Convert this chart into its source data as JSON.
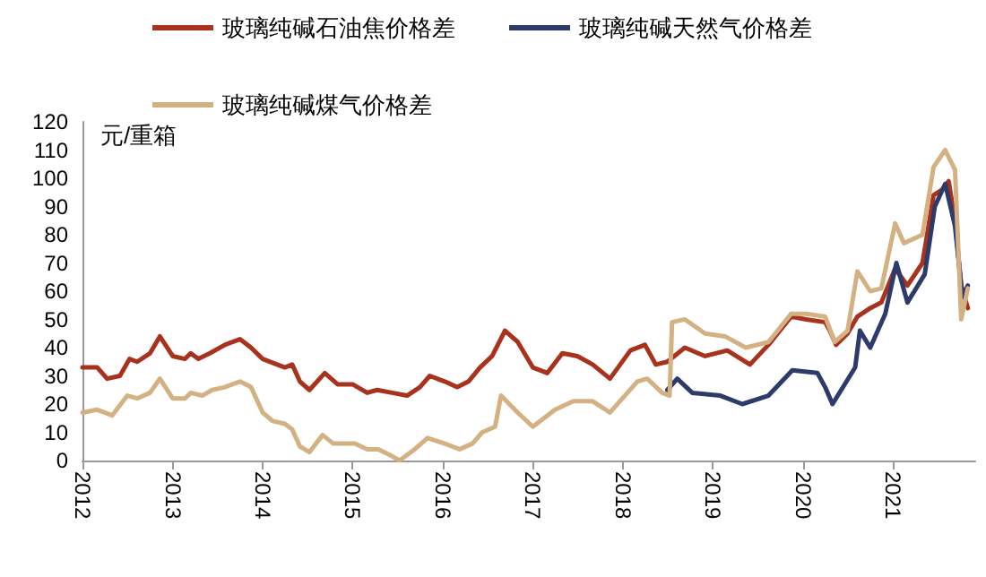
{
  "chart_data": {
    "type": "line",
    "ylabel": "元/重箱",
    "ylim": [
      0,
      120
    ],
    "yticks": [
      0,
      10,
      20,
      30,
      40,
      50,
      60,
      70,
      80,
      90,
      100,
      110,
      120
    ],
    "xlim": [
      "2012-01-01",
      "2021-12-01"
    ],
    "xticks": [
      "2012",
      "2013",
      "2014",
      "2015",
      "2016",
      "2017",
      "2018",
      "2019",
      "2020",
      "2021"
    ],
    "grid": false,
    "legend": "top",
    "marker": "none",
    "line_style": "solid",
    "series": [
      {
        "name": "玻璃纯碱石油焦价格差",
        "color": "#a8321c",
        "x": [
          "2012-01-01",
          "2012-03-01",
          "2012-04-10",
          "2012-06-01",
          "2012-07-10",
          "2012-08-10",
          "2012-10-01",
          "2012-11-10",
          "2013-01-01",
          "2013-02-20",
          "2013-03-15",
          "2013-04-15",
          "2013-06-01",
          "2013-08-01",
          "2013-10-01",
          "2013-11-15",
          "2014-01-01",
          "2014-03-01",
          "2014-04-01",
          "2014-05-01",
          "2014-06-01",
          "2014-07-10",
          "2014-09-10",
          "2014-11-01",
          "2015-01-01",
          "2015-03-01",
          "2015-04-10",
          "2015-06-10",
          "2015-08-10",
          "2015-10-01",
          "2015-11-10",
          "2016-01-10",
          "2016-03-01",
          "2016-04-15",
          "2016-06-01",
          "2016-07-20",
          "2016-09-10",
          "2016-11-01",
          "2017-01-01",
          "2017-03-01",
          "2017-05-01",
          "2017-07-01",
          "2017-09-01",
          "2017-11-10",
          "2018-02-01",
          "2018-04-01",
          "2018-05-15",
          "2018-07-01",
          "2018-09-10",
          "2018-12-01",
          "2019-03-01",
          "2019-06-01",
          "2019-08-15",
          "2019-11-15",
          "2020-01-15",
          "2020-04-01",
          "2020-04-20",
          "2020-05-15",
          "2020-07-01",
          "2020-08-10",
          "2020-10-01",
          "2020-11-15",
          "2021-01-10",
          "2021-03-01",
          "2021-05-01",
          "2021-06-15",
          "2021-07-20",
          "2021-08-15",
          "2021-09-10",
          "2021-10-05",
          "2021-11-01"
        ],
        "values": [
          33,
          33,
          29,
          30,
          36,
          35,
          38,
          44,
          37,
          36,
          38,
          36,
          38,
          41,
          43,
          40,
          36,
          34,
          33,
          34,
          28,
          25,
          31,
          27,
          27,
          24,
          25,
          24,
          23,
          26,
          30,
          28,
          26,
          28,
          33,
          37,
          46,
          42,
          33,
          31,
          38,
          37,
          34,
          29,
          39,
          41,
          34,
          35,
          40,
          37,
          39,
          34,
          41,
          51,
          50,
          49,
          46,
          41,
          45,
          51,
          54,
          56,
          68,
          62,
          70,
          94,
          96,
          99,
          85,
          62,
          54
        ]
      },
      {
        "name": "玻璃纯碱天然气价格差",
        "color": "#2d3b6b",
        "x": [
          "2018-07-01",
          "2018-08-10",
          "2018-10-10",
          "2019-02-01",
          "2019-05-01",
          "2019-08-15",
          "2019-11-20",
          "2020-03-01",
          "2020-04-01",
          "2020-05-01",
          "2020-08-01",
          "2020-08-20",
          "2020-10-01",
          "2020-12-01",
          "2021-01-15",
          "2021-03-01",
          "2021-05-10",
          "2021-06-20",
          "2021-08-01",
          "2021-09-10",
          "2021-10-10",
          "2021-11-01"
        ],
        "values": [
          25,
          29,
          24,
          23,
          20,
          23,
          32,
          31,
          26,
          20,
          33,
          46,
          40,
          52,
          70,
          56,
          66,
          90,
          98,
          83,
          58,
          62
        ]
      },
      {
        "name": "玻璃纯碱煤气价格差",
        "color": "#d4b183",
        "x": [
          "2012-01-01",
          "2012-03-01",
          "2012-05-01",
          "2012-07-01",
          "2012-08-10",
          "2012-10-01",
          "2012-11-10",
          "2013-01-01",
          "2013-02-20",
          "2013-03-15",
          "2013-05-01",
          "2013-06-10",
          "2013-08-01",
          "2013-10-01",
          "2013-11-15",
          "2014-01-01",
          "2014-02-10",
          "2014-04-01",
          "2014-05-01",
          "2014-06-01",
          "2014-07-10",
          "2014-09-01",
          "2014-10-15",
          "2015-01-10",
          "2015-03-01",
          "2015-04-15",
          "2015-06-01",
          "2015-07-10",
          "2015-09-10",
          "2015-11-01",
          "2016-01-10",
          "2016-03-10",
          "2016-05-01",
          "2016-06-10",
          "2016-08-01",
          "2016-08-25",
          "2016-11-01",
          "2017-01-01",
          "2017-04-01",
          "2017-06-15",
          "2017-09-01",
          "2017-11-10",
          "2018-03-01",
          "2018-04-10",
          "2018-06-10",
          "2018-07-10",
          "2018-07-20",
          "2018-09-10",
          "2018-12-01",
          "2019-02-20",
          "2019-05-15",
          "2019-08-15",
          "2019-11-15",
          "2020-01-15",
          "2020-04-01",
          "2020-05-10",
          "2020-07-01",
          "2020-08-10",
          "2020-10-01",
          "2020-11-15",
          "2021-01-10",
          "2021-02-15",
          "2021-05-01",
          "2021-06-15",
          "2021-08-01",
          "2021-09-10",
          "2021-10-05",
          "2021-11-01"
        ],
        "values": [
          17,
          18,
          16,
          23,
          22,
          24,
          29,
          22,
          22,
          24,
          23,
          25,
          26,
          28,
          26,
          17,
          14,
          13,
          11,
          5,
          3,
          9,
          6,
          6,
          4,
          4,
          2,
          0,
          4,
          8,
          6,
          4,
          6,
          10,
          12,
          23,
          17,
          12,
          18,
          21,
          21,
          17,
          28,
          29,
          24,
          23,
          49,
          50,
          45,
          44,
          40,
          42,
          52,
          52,
          51,
          42,
          46,
          67,
          60,
          61,
          84,
          77,
          80,
          104,
          110,
          103,
          50,
          61
        ]
      }
    ]
  }
}
